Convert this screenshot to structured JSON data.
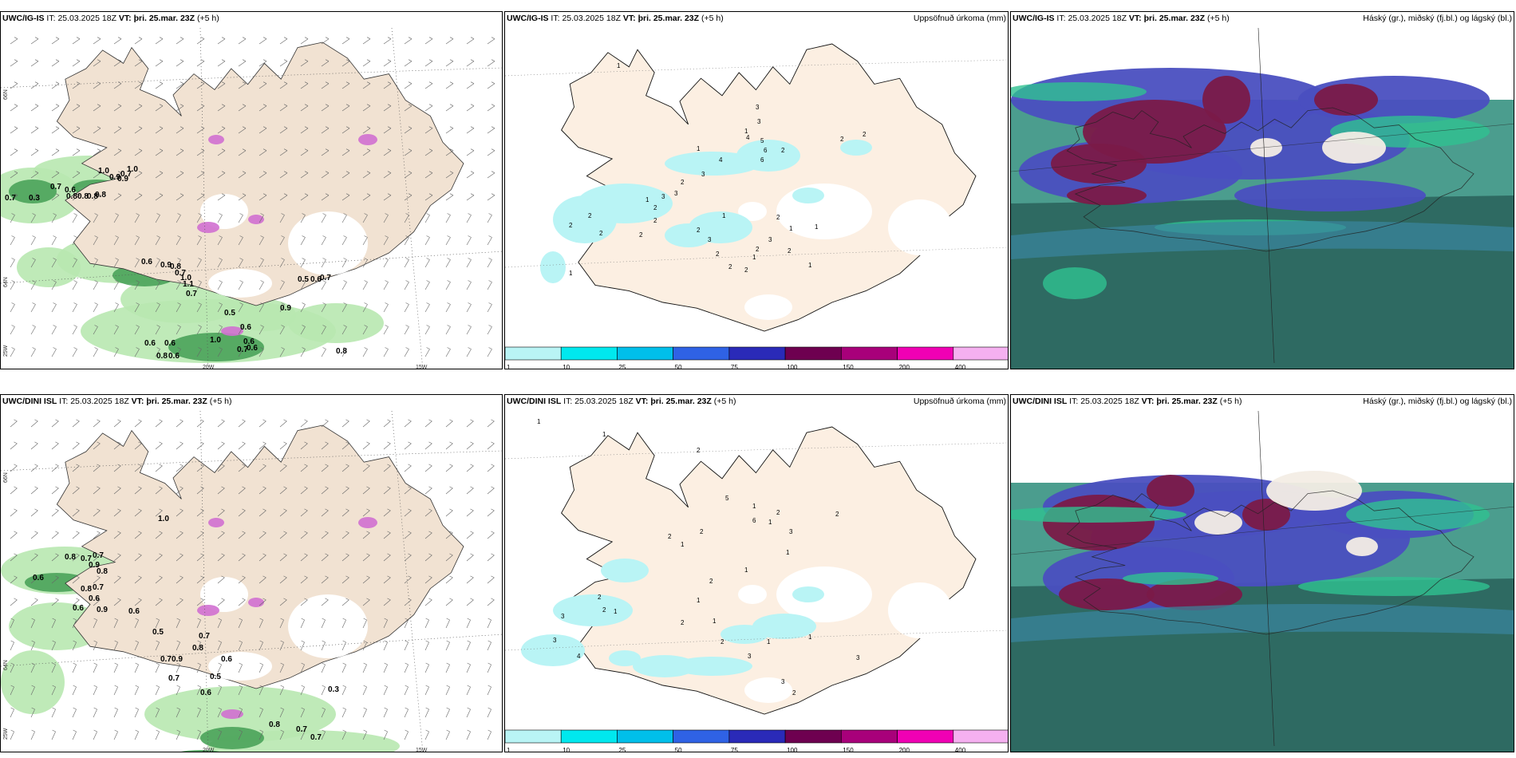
{
  "rows": [
    {
      "panels": [
        {
          "id": "wind",
          "model": "UWC/IG-IS",
          "it_label": "IT:",
          "it": "25.03.2025 18Z",
          "vt_label": "VT:",
          "vt": "þri. 25.mar. 23Z",
          "lead": "(+5 h)",
          "right_title": ""
        },
        {
          "id": "precip",
          "model": "UWC/IG-IS",
          "it_label": "IT:",
          "it": "25.03.2025 18Z",
          "vt_label": "VT:",
          "vt": "þri. 25.mar. 23Z",
          "lead": "(+5 h)",
          "right_title": "Uppsöfnuð úrkoma (mm)"
        },
        {
          "id": "cloud",
          "model": "UWC/IG-IS",
          "it_label": "IT:",
          "it": "25.03.2025 18Z",
          "vt_label": "VT:",
          "vt": "þri. 25.mar. 23Z",
          "lead": "(+5 h)",
          "right_title": "Háský (gr.), miðský (fj.bl.) og lágský (bl.)"
        }
      ]
    },
    {
      "panels": [
        {
          "id": "wind",
          "model": "UWC/DINI ISL",
          "it_label": "IT:",
          "it": "25.03.2025 18Z",
          "vt_label": "VT:",
          "vt": "þri. 25.mar. 23Z",
          "lead": "(+5 h)",
          "right_title": ""
        },
        {
          "id": "precip",
          "model": "UWC/DINI ISL",
          "it_label": "IT:",
          "it": "25.03.2025 18Z",
          "vt_label": "VT:",
          "vt": "þri. 25.mar. 23Z",
          "lead": "(+5 h)",
          "right_title": "Uppsöfnuð úrkoma (mm)"
        },
        {
          "id": "cloud",
          "model": "UWC/DINI ISL",
          "it_label": "IT:",
          "it": "25.03.2025 18Z",
          "vt_label": "VT:",
          "vt": "þri. 25.mar. 23Z",
          "lead": "(+5 h)",
          "right_title": "Háský (gr.), miðský (fj.bl.) og lágský (bl.)"
        }
      ]
    }
  ],
  "axes": {
    "lat66": "66N",
    "lat64": "64N",
    "lon25": "25W",
    "lon20": "20W",
    "lon15": "15W"
  },
  "colorbar": {
    "ticks": [
      "1",
      "10",
      "25",
      "50",
      "75",
      "100",
      "150",
      "200",
      "400"
    ],
    "colors": [
      "#b9f4f5",
      "#00e8ee",
      "#00bfea",
      "#2f62e5",
      "#2a2ab8",
      "#6e0050",
      "#a8007a",
      "#f000b4",
      "#f5b0f0"
    ]
  },
  "top_wind_labels": [
    "0.7",
    "0.3",
    "0.7",
    "0.6",
    "0.8",
    "0.8",
    "0.8",
    "1.0",
    "0.9",
    "0.7",
    "1.0",
    "0.9",
    "0.8",
    "0.6",
    "0.9",
    "0.8",
    "0.7",
    "1.0",
    "1.1",
    "0.7",
    "0.5",
    "0.6",
    "0.7",
    "0.9",
    "0.5",
    "0.6",
    "0.6",
    "0.6",
    "0.8",
    "0.6",
    "1.0",
    "0.7",
    "0.6",
    "0.8",
    "0.6"
  ],
  "bottom_wind_labels": [
    "0.8",
    "0.7",
    "0.7",
    "0.9",
    "0.8",
    "1.0",
    "0.6",
    "0.8",
    "0.7",
    "0.6",
    "0.6",
    "0.9",
    "0.6",
    "0.5",
    "0.7",
    "0.9",
    "0.8",
    "0.7",
    "0.6",
    "0.5",
    "0.7",
    "0.6",
    "0.8",
    "0.7",
    "0.7",
    "0.3"
  ],
  "top_precip_labels": [
    "1",
    "3",
    "3",
    "1",
    "4",
    "5",
    "6",
    "6",
    "2",
    "2",
    "2",
    "1",
    "4",
    "3",
    "2",
    "3",
    "3",
    "1",
    "2",
    "2",
    "2",
    "2",
    "2",
    "2",
    "2",
    "3",
    "2",
    "2",
    "1",
    "2",
    "1",
    "1",
    "2",
    "3",
    "1",
    "2",
    "1",
    "1",
    "2"
  ],
  "bottom_precip_labels": [
    "1",
    "1",
    "2",
    "5",
    "1",
    "6",
    "2",
    "1",
    "3",
    "1",
    "2",
    "1",
    "2",
    "2",
    "1",
    "2",
    "1",
    "2",
    "2",
    "2",
    "1",
    "3",
    "3",
    "4",
    "2",
    "3",
    "1",
    "1",
    "1",
    "3",
    "3",
    "2"
  ]
}
